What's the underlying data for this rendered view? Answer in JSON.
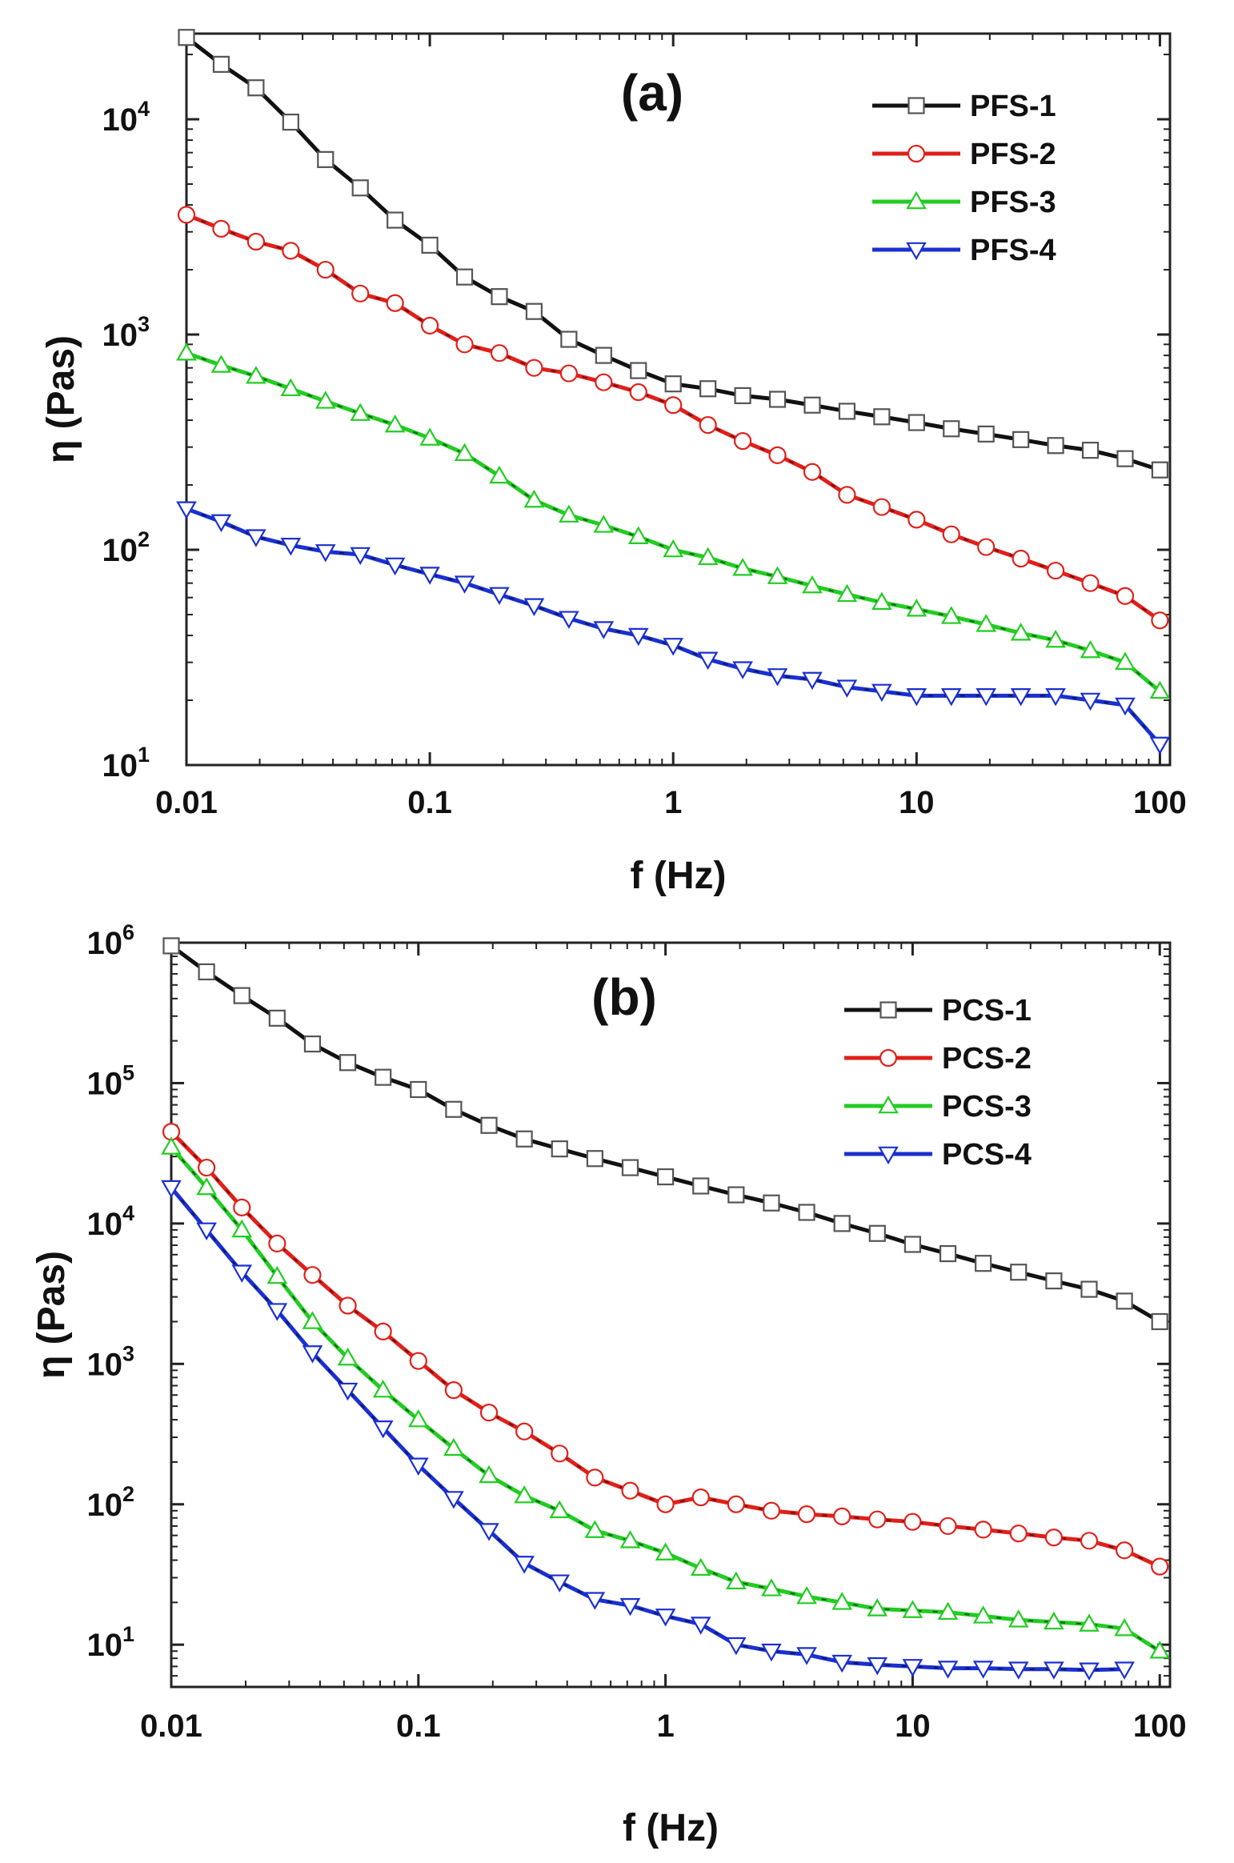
{
  "chart_data": [
    {
      "type": "line",
      "panel_label": "(a)",
      "xlabel": "f (Hz)",
      "ylabel": "η (Pas)",
      "xscale": "log",
      "yscale": "log",
      "xlim": [
        0.01,
        110
      ],
      "ylim": [
        10,
        25000
      ],
      "x_ticks": [
        {
          "value": 0.01,
          "label": "0.01"
        },
        {
          "value": 0.1,
          "label": "0.1"
        },
        {
          "value": 1,
          "label": "1"
        },
        {
          "value": 10,
          "label": "10"
        },
        {
          "value": 100,
          "label": "100"
        }
      ],
      "y_ticks": [
        {
          "value": 10,
          "base": "10",
          "exp": "1"
        },
        {
          "value": 100,
          "base": "10",
          "exp": "2"
        },
        {
          "value": 1000,
          "base": "10",
          "exp": "3"
        },
        {
          "value": 10000,
          "base": "10",
          "exp": "4"
        }
      ],
      "legend_position": "top-right",
      "series": [
        {
          "name": "PFS-1",
          "color": "#111111",
          "marker": "square",
          "values": [
            24000,
            18000,
            14000,
            9700,
            6500,
            4800,
            3400,
            2600,
            1850,
            1500,
            1280,
            950,
            800,
            680,
            590,
            560,
            520,
            500,
            470,
            440,
            415,
            390,
            365,
            345,
            325,
            305,
            290,
            265,
            235
          ]
        },
        {
          "name": "PFS-2",
          "color": "#e0201a",
          "marker": "circle",
          "values": [
            3600,
            3100,
            2700,
            2450,
            2000,
            1550,
            1400,
            1100,
            900,
            820,
            700,
            660,
            600,
            540,
            470,
            380,
            320,
            275,
            230,
            180,
            158,
            138,
            118,
            103,
            91,
            80,
            70,
            61,
            47
          ]
        },
        {
          "name": "PFS-3",
          "color": "#22cc22",
          "marker": "triangle-up",
          "values": [
            820,
            720,
            640,
            560,
            490,
            430,
            380,
            330,
            280,
            220,
            170,
            145,
            130,
            115,
            100,
            92,
            82,
            75,
            68,
            62,
            57,
            53,
            49,
            45,
            41,
            38,
            34,
            30,
            22
          ]
        },
        {
          "name": "PFS-4",
          "color": "#1a30d0",
          "marker": "triangle-down",
          "values": [
            155,
            135,
            115,
            105,
            98,
            95,
            85,
            77,
            70,
            62,
            55,
            48,
            43,
            40,
            36,
            31,
            28,
            26,
            25,
            23,
            22,
            21,
            21,
            21,
            21,
            21,
            20,
            19,
            12.5
          ]
        }
      ]
    },
    {
      "type": "line",
      "panel_label": "(b)",
      "xlabel": "f (Hz)",
      "ylabel": "η (Pas)",
      "xscale": "log",
      "yscale": "log",
      "xlim": [
        0.01,
        110
      ],
      "ylim": [
        5,
        1000000
      ],
      "x_ticks": [
        {
          "value": 0.01,
          "label": "0.01"
        },
        {
          "value": 0.1,
          "label": "0.1"
        },
        {
          "value": 1,
          "label": "1"
        },
        {
          "value": 10,
          "label": "10"
        },
        {
          "value": 100,
          "label": "100"
        }
      ],
      "y_ticks": [
        {
          "value": 10,
          "base": "10",
          "exp": "1"
        },
        {
          "value": 100,
          "base": "10",
          "exp": "2"
        },
        {
          "value": 1000,
          "base": "10",
          "exp": "3"
        },
        {
          "value": 10000,
          "base": "10",
          "exp": "4"
        },
        {
          "value": 100000,
          "base": "10",
          "exp": "5"
        },
        {
          "value": 1000000,
          "base": "10",
          "exp": "6"
        }
      ],
      "legend_position": "top-right",
      "series": [
        {
          "name": "PCS-1",
          "color": "#111111",
          "marker": "square",
          "values": [
            950000,
            620000,
            420000,
            290000,
            190000,
            140000,
            110000,
            90000,
            65000,
            50000,
            40000,
            34000,
            29000,
            25000,
            21500,
            18500,
            16000,
            14000,
            12000,
            10000,
            8500,
            7100,
            6100,
            5200,
            4500,
            3900,
            3400,
            2800,
            2000
          ]
        },
        {
          "name": "PCS-2",
          "color": "#e0201a",
          "marker": "circle",
          "values": [
            45000,
            25000,
            13000,
            7200,
            4300,
            2600,
            1700,
            1050,
            650,
            450,
            330,
            230,
            155,
            125,
            100,
            112,
            100,
            90,
            85,
            82,
            78,
            75,
            70,
            66,
            62,
            58,
            55,
            47,
            36
          ]
        },
        {
          "name": "PCS-3",
          "color": "#22cc22",
          "marker": "triangle-up",
          "values": [
            35000,
            18000,
            9000,
            4200,
            2000,
            1100,
            650,
            400,
            250,
            160,
            115,
            90,
            65,
            55,
            45,
            35,
            28,
            25,
            22,
            20,
            18,
            17.5,
            17,
            16,
            15,
            14.5,
            14,
            13,
            9
          ]
        },
        {
          "name": "PCS-4",
          "color": "#1a30d0",
          "marker": "triangle-down",
          "values": [
            18000,
            9000,
            4500,
            2400,
            1200,
            650,
            350,
            190,
            110,
            65,
            38,
            28,
            21,
            19,
            16,
            14,
            10,
            9,
            8.5,
            7.5,
            7.2,
            7,
            6.8,
            6.8,
            6.7,
            6.7,
            6.6,
            6.7
          ]
        }
      ]
    }
  ]
}
